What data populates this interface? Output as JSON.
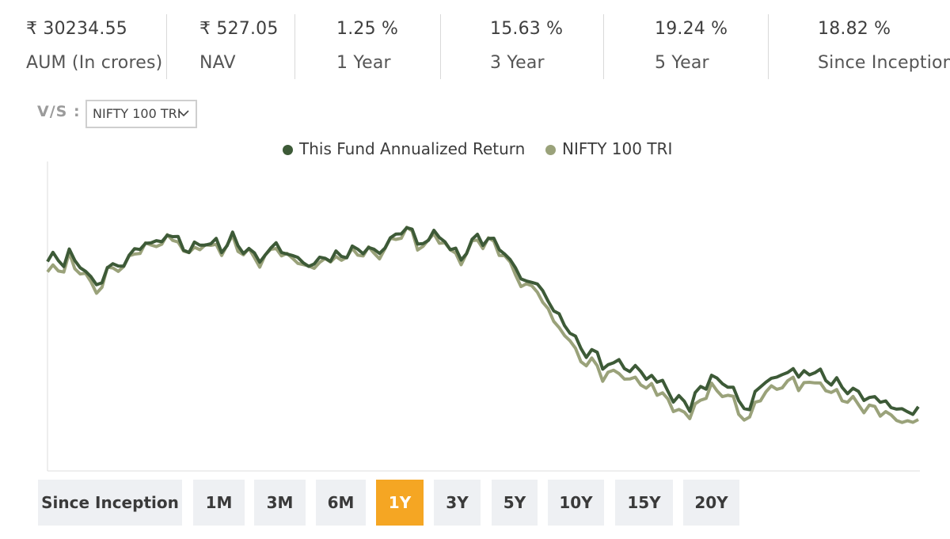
{
  "stats": [
    {
      "value": "₹ 30234.55",
      "label": "AUM (In crores)"
    },
    {
      "value": "₹ 527.05",
      "label": "NAV"
    },
    {
      "value": "1.25 %",
      "label": "1 Year"
    },
    {
      "value": "15.63 %",
      "label": "3 Year"
    },
    {
      "value": "19.24 %",
      "label": "5 Year"
    },
    {
      "value": "18.82 %",
      "label": "Since Inception"
    }
  ],
  "compare": {
    "label": "V/S :",
    "selected": "NIFTY 100 TRI"
  },
  "colors": {
    "fund": "#3d5a37",
    "benchmark": "#9aa27a",
    "active": "#f5a623",
    "button_bg": "#eef0f3"
  },
  "chart_data": {
    "type": "line",
    "series": [
      {
        "name": "This Fund Annualized Return",
        "values": [
          73,
          76,
          73,
          72,
          78,
          72,
          71,
          71,
          66,
          63,
          67,
          71,
          70,
          72,
          73,
          74,
          77,
          79,
          80,
          79,
          81,
          81,
          83,
          82,
          82,
          78,
          77,
          79,
          79,
          81,
          79,
          80,
          78,
          80,
          82,
          79,
          78,
          77,
          75,
          74,
          76,
          77,
          80,
          77,
          76,
          75,
          74,
          73,
          72,
          71,
          74,
          76,
          73,
          75,
          76,
          76,
          77,
          77,
          78,
          78,
          76,
          77,
          79,
          81,
          83,
          84,
          86,
          85,
          79,
          80,
          82,
          84,
          81,
          82,
          78,
          76,
          74,
          78,
          80,
          82,
          81,
          82,
          80,
          78,
          77,
          73,
          70,
          67,
          66,
          65,
          64,
          62,
          59,
          54,
          52,
          50,
          47,
          43,
          40,
          39,
          39,
          37,
          34,
          35,
          33,
          36,
          34,
          31,
          33,
          32,
          29,
          30,
          27,
          28,
          25,
          20,
          21,
          21,
          18,
          22,
          25,
          27,
          30,
          27,
          28,
          27,
          24,
          20,
          19,
          17,
          23,
          26,
          28,
          29,
          29,
          30,
          32,
          33,
          28,
          32,
          32,
          30,
          31,
          30,
          27,
          27,
          26,
          25,
          24,
          23,
          22,
          22,
          21,
          20,
          21,
          18,
          17,
          17,
          17,
          16,
          17
        ]
      },
      {
        "name": "NIFTY 100 TRI",
        "values": [
          68,
          72,
          70,
          69,
          76,
          70,
          69,
          69,
          64,
          61,
          65,
          70,
          69,
          71,
          72,
          73,
          76,
          78,
          79,
          78,
          80,
          80,
          82,
          81,
          81,
          77,
          76,
          78,
          78,
          80,
          78,
          79,
          77,
          79,
          81,
          78,
          77,
          76,
          74,
          73,
          75,
          76,
          79,
          76,
          75,
          74,
          73,
          72,
          71,
          70,
          73,
          75,
          72,
          74,
          75,
          75,
          76,
          76,
          77,
          77,
          75,
          76,
          78,
          80,
          82,
          83,
          85,
          84,
          78,
          79,
          81,
          83,
          80,
          81,
          77,
          75,
          73,
          77,
          79,
          81,
          80,
          81,
          79,
          77,
          76,
          71,
          68,
          65,
          64,
          63,
          62,
          58,
          55,
          50,
          48,
          46,
          43,
          39,
          36,
          35,
          35,
          33,
          30,
          31,
          30,
          32,
          30,
          27,
          29,
          28,
          25,
          26,
          23,
          24,
          21,
          16,
          17,
          17,
          14,
          18,
          21,
          23,
          26,
          23,
          24,
          23,
          20,
          16,
          15,
          13,
          19,
          22,
          24,
          25,
          25,
          26,
          28,
          29,
          24,
          28,
          28,
          26,
          27,
          26,
          23,
          23,
          22,
          21,
          20,
          19,
          18,
          18,
          17,
          16,
          17,
          14,
          13,
          13,
          13,
          12,
          13
        ]
      }
    ],
    "x_range": "1Y",
    "ylim": [
      0,
      100
    ],
    "grid": false,
    "legend": "top-center"
  },
  "periods": [
    {
      "label": "Since Inception",
      "active": false
    },
    {
      "label": "1M",
      "active": false
    },
    {
      "label": "3M",
      "active": false
    },
    {
      "label": "6M",
      "active": false
    },
    {
      "label": "1Y",
      "active": true
    },
    {
      "label": "3Y",
      "active": false
    },
    {
      "label": "5Y",
      "active": false
    },
    {
      "label": "10Y",
      "active": false
    },
    {
      "label": "15Y",
      "active": false
    },
    {
      "label": "20Y",
      "active": false
    }
  ]
}
